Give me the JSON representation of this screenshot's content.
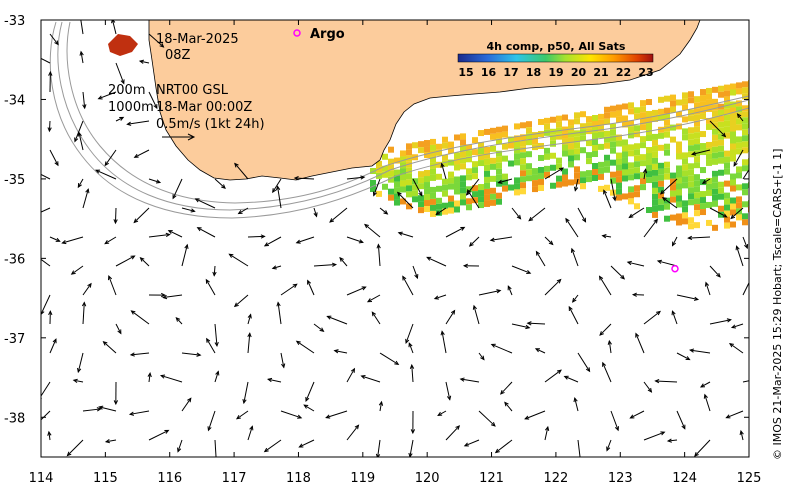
{
  "map": {
    "lon_range": [
      114,
      125
    ],
    "lat_range": [
      -38.5,
      -33
    ],
    "lon_ticks": [
      "114",
      "115",
      "116",
      "117",
      "118",
      "119",
      "120",
      "121",
      "122",
      "123",
      "124",
      "125"
    ],
    "lat_ticks": [
      "-33",
      "-34",
      "-35",
      "-36",
      "-37",
      "-38"
    ]
  },
  "annotations": {
    "date": "18-Mar-2025",
    "hour": "08Z",
    "depth1": "200m",
    "depth2": "1000m",
    "product": "NRT00 GSL",
    "product_time": "18-Mar 00:00Z",
    "scale": "0.5m/s (1kt 24h)"
  },
  "argo": {
    "legend_label": "Argo",
    "float_lon": 123.85,
    "float_lat": -36.13,
    "color": "#ff00ff"
  },
  "legend": {
    "title": "4h comp, p50, All Sats",
    "ticks": [
      "15",
      "16",
      "17",
      "18",
      "19",
      "20",
      "21",
      "22",
      "23"
    ]
  },
  "credit": "© IMOS 21-Mar-2025 15:29 Hobart; Tscale=CARS+[-1 1]",
  "colors": {
    "land": "#fccc9c",
    "contour": "#a0a0a0",
    "scale": [
      "#00007f",
      "#0000ff",
      "#007fff",
      "#00ffff",
      "#7fff7f",
      "#ffff00",
      "#ff7f00",
      "#ff0000",
      "#7f0000"
    ]
  }
}
